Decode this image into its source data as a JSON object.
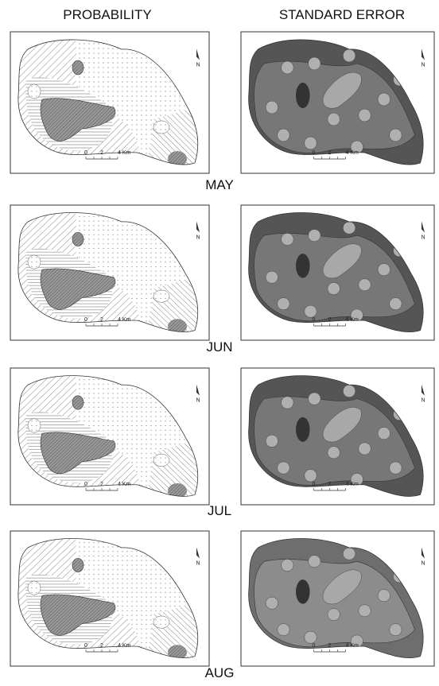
{
  "header": {
    "left": "PROBABILITY",
    "right": "STANDARD ERROR"
  },
  "rows": [
    {
      "month": "MAY"
    },
    {
      "month": "JUN"
    },
    {
      "month": "JUL"
    },
    {
      "month": "AUG"
    }
  ],
  "scale_bar": {
    "labels": [
      "0",
      "2",
      "4 Km"
    ]
  },
  "north_label": "N"
}
